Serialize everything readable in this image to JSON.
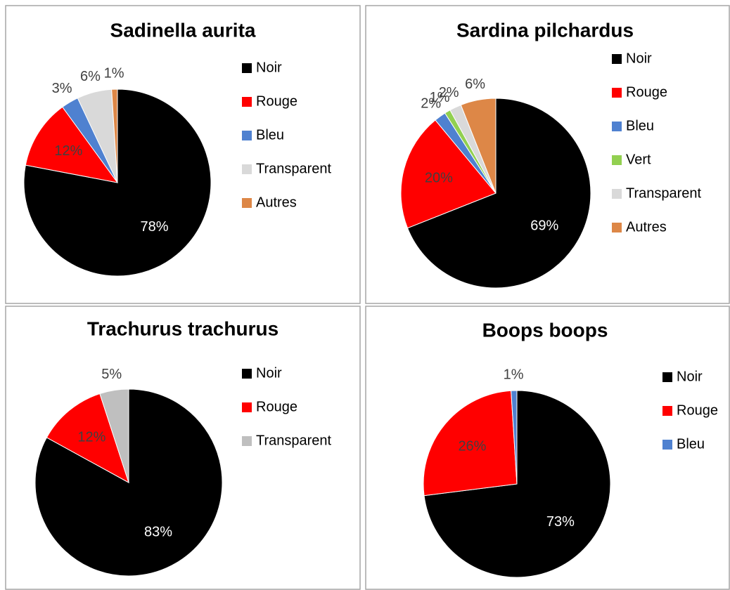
{
  "chart_data": [
    {
      "type": "pie",
      "title": "Sadinella aurita",
      "categories": [
        "Noir",
        "Rouge",
        "Bleu",
        "Transparent",
        "Autres"
      ],
      "values": [
        78,
        12,
        3,
        6,
        1
      ],
      "value_labels": [
        "78%",
        "12%",
        "3%",
        "6%",
        "1%"
      ],
      "colors": [
        "#000000",
        "#ff0000",
        "#4f81d0",
        "#d9d9d9",
        "#dd8747"
      ]
    },
    {
      "type": "pie",
      "title": "Sardina pilchardus",
      "categories": [
        "Noir",
        "Rouge",
        "Bleu",
        "Vert",
        "Transparent",
        "Autres"
      ],
      "values": [
        69,
        20,
        2,
        1,
        2,
        6
      ],
      "value_labels": [
        "69%",
        "20%",
        "2%",
        "1%",
        "2%",
        "6%"
      ],
      "colors": [
        "#000000",
        "#ff0000",
        "#4f81d0",
        "#92d050",
        "#d9d9d9",
        "#dd8747"
      ]
    },
    {
      "type": "pie",
      "title": "Trachurus trachurus",
      "categories": [
        "Noir",
        "Rouge",
        "Transparent"
      ],
      "values": [
        83,
        12,
        5
      ],
      "value_labels": [
        "83%",
        "12%",
        "5%"
      ],
      "colors": [
        "#000000",
        "#ff0000",
        "#bfbfbf"
      ]
    },
    {
      "type": "pie",
      "title": "Boops boops",
      "categories": [
        "Noir",
        "Rouge",
        "Bleu"
      ],
      "values": [
        73,
        26,
        1
      ],
      "value_labels": [
        "73%",
        "26%",
        "1%"
      ],
      "colors": [
        "#000000",
        "#ff0000",
        "#4f81d0"
      ]
    }
  ]
}
